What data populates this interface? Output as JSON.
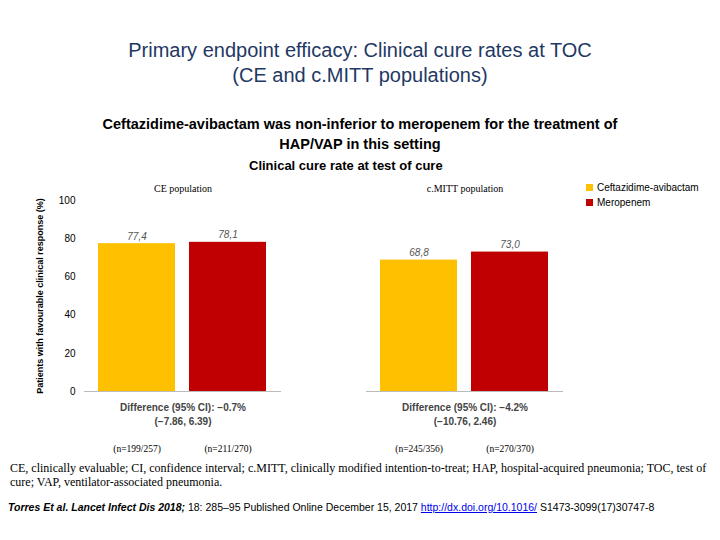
{
  "slide_title": "Primary endpoint efficacy: Clinical cure rates at TOC\n(CE and c.MITT populations)",
  "slide_subtitle": "Ceftazidime-avibactam was non-inferior to meropenem for the treatment of\nHAP/VAP in this setting",
  "chart_data": {
    "type": "bar",
    "title": "Clinical cure rate at test of cure",
    "y_label": "Patients with favourable clinical response (%)",
    "categories": [
      "CE population",
      "c.MITT population"
    ],
    "series": [
      {
        "name": "Ceftazidime-avibactam",
        "color": "#FFC000",
        "values": [
          77.4,
          68.8
        ],
        "value_labels": [
          "77,4",
          "68,8"
        ],
        "n_labels": [
          "(n=199/257)",
          "(n=245/356)"
        ]
      },
      {
        "name": "Meropenem",
        "color": "#C00000",
        "values": [
          78.1,
          73.0
        ],
        "value_labels": [
          "78,1",
          "73,0"
        ],
        "n_labels": [
          "(n=211/270)",
          "(n=270/370)"
        ]
      }
    ],
    "annotations": [
      [
        "Difference (95% CI): −0.7%",
        "(−7.86, 6.39)"
      ],
      [
        "Difference (95% CI): −4.2%",
        "(−10.76, 2.46)"
      ]
    ],
    "ylim": [
      0,
      100
    ],
    "yticks": [
      0,
      20,
      40,
      60,
      80,
      100
    ],
    "grid": false,
    "legend": "top-right",
    "data_labels": true
  },
  "footnote": "CE, clinically evaluable; CI, confidence interval; c.MITT, clinically modified intention-to-treat; HAP, hospital-acquired pneumonia; TOC, test of cure; VAP, ventilator-associated pneumonia.",
  "citation": {
    "source": "Torres Et al. Lancet Infect Dis 2018;",
    "details": " 18: 285–95 Published Online December 15, 2017 ",
    "link": "http://dx.doi.org/10.1016/",
    "id": " S1473-3099(17)30747-8"
  }
}
